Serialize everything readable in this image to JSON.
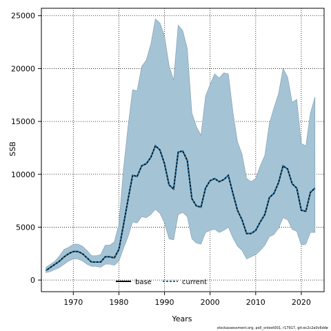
{
  "chart_data": {
    "type": "area",
    "xlabel": "Years",
    "ylabel": "SSB",
    "xlim": [
      1963,
      2025
    ],
    "ylim": [
      -1100,
      25700
    ],
    "x_ticks": [
      1970,
      1980,
      1990,
      2000,
      2010,
      2020
    ],
    "y_ticks": [
      0,
      5000,
      10000,
      15000,
      20000,
      25000
    ],
    "grid": true,
    "legend_placement": "bottom",
    "legend": [
      "base",
      "current"
    ],
    "colors": {
      "band": "#a4c4d6",
      "band_edge": "#7d98a8",
      "base": "#000000",
      "current": "#1f6f9f"
    },
    "footer": "stockassessment.org, poll_sntest001, r17917, git:ec2c2a0c6dde",
    "x": [
      1964,
      1965,
      1966,
      1967,
      1968,
      1969,
      1970,
      1971,
      1972,
      1973,
      1974,
      1975,
      1976,
      1977,
      1978,
      1979,
      1980,
      1981,
      1982,
      1983,
      1984,
      1985,
      1986,
      1987,
      1988,
      1989,
      1990,
      1991,
      1992,
      1993,
      1994,
      1995,
      1996,
      1997,
      1998,
      1999,
      2000,
      2001,
      2002,
      2003,
      2004,
      2005,
      2006,
      2007,
      2008,
      2009,
      2010,
      2011,
      2012,
      2013,
      2014,
      2015,
      2016,
      2017,
      2018,
      2019,
      2020,
      2021,
      2022,
      2023
    ],
    "series": [
      {
        "name": "base",
        "values": [
          900,
          1200,
          1500,
          1800,
          2200,
          2500,
          2700,
          2700,
          2500,
          2100,
          1700,
          1700,
          1700,
          2200,
          2200,
          2100,
          2900,
          5200,
          7600,
          9900,
          9800,
          10800,
          11000,
          11600,
          12700,
          12300,
          11000,
          9000,
          8600,
          12100,
          12200,
          11300,
          7700,
          7000,
          6900,
          8700,
          9400,
          9600,
          9300,
          9500,
          9900,
          8200,
          6600,
          5700,
          4400,
          4400,
          4700,
          5500,
          6200,
          7800,
          8200,
          9200,
          10800,
          10500,
          9100,
          8700,
          6600,
          6500,
          8300,
          8700
        ]
      },
      {
        "name": "current",
        "values": [
          900,
          1200,
          1500,
          1800,
          2200,
          2500,
          2700,
          2700,
          2500,
          2100,
          1700,
          1700,
          1700,
          2200,
          2200,
          2100,
          2900,
          5200,
          7600,
          9900,
          9800,
          10800,
          11000,
          11600,
          12700,
          12300,
          11000,
          9000,
          8600,
          12100,
          12200,
          11300,
          7700,
          7000,
          6900,
          8700,
          9400,
          9600,
          9300,
          9500,
          9900,
          8200,
          6600,
          5700,
          4400,
          4400,
          4700,
          5500,
          6200,
          7800,
          8200,
          9200,
          10800,
          10500,
          9100,
          8700,
          6600,
          6500,
          8300,
          8700
        ]
      }
    ],
    "band": {
      "upper": [
        1200,
        1500,
        1800,
        2300,
        2900,
        3100,
        3400,
        3400,
        3200,
        2800,
        2300,
        2300,
        2400,
        3300,
        3300,
        3600,
        5300,
        10500,
        14500,
        18000,
        17900,
        20200,
        20800,
        22300,
        24700,
        24300,
        23100,
        20300,
        18900,
        24100,
        23600,
        21900,
        15800,
        14500,
        13700,
        17400,
        18500,
        19500,
        19100,
        19600,
        19500,
        15900,
        13100,
        11900,
        9600,
        9300,
        9600,
        10800,
        11800,
        14800,
        16300,
        17600,
        20000,
        19200,
        16800,
        17100,
        12900,
        12700,
        15800,
        17300
      ],
      "lower": [
        700,
        800,
        1000,
        1200,
        1500,
        1800,
        2000,
        2000,
        1800,
        1500,
        1300,
        1300,
        1200,
        1500,
        1500,
        1400,
        1800,
        3000,
        4100,
        5500,
        5400,
        6000,
        5900,
        6200,
        6700,
        6300,
        5400,
        3900,
        3800,
        6200,
        6400,
        6000,
        3900,
        3500,
        3400,
        4500,
        4700,
        4800,
        4500,
        4700,
        5000,
        4000,
        3200,
        2800,
        2000,
        2200,
        2400,
        2800,
        3300,
        4100,
        4300,
        4900,
        5900,
        5700,
        4800,
        4600,
        3300,
        3400,
        4500,
        4500
      ]
    }
  }
}
